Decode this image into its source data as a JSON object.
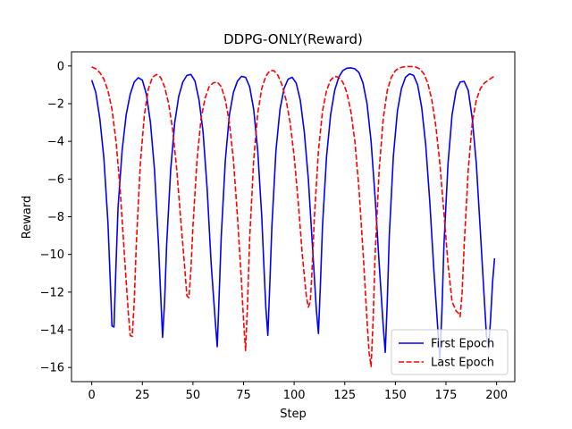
{
  "chart_data": {
    "type": "line",
    "title": "DDPG-ONLY(Reward)",
    "xlabel": "Step",
    "ylabel": "Reward",
    "xlim": [
      -10,
      209
    ],
    "ylim": [
      -16.75,
      0.75
    ],
    "xticks": [
      0,
      25,
      50,
      75,
      100,
      125,
      150,
      175,
      200
    ],
    "yticks": [
      0,
      -2,
      -4,
      -6,
      -8,
      -10,
      -12,
      -14,
      -16
    ],
    "grid": false,
    "legend_position": "lower-right",
    "series": [
      {
        "name": "First Epoch",
        "color": "#0000ff",
        "style": "solid",
        "points": [
          [
            0,
            -0.75
          ],
          [
            2,
            -1.4
          ],
          [
            4,
            -2.8
          ],
          [
            6,
            -4.9
          ],
          [
            8,
            -8.3
          ],
          [
            9,
            -11.0
          ],
          [
            10,
            -13.8
          ],
          [
            11,
            -13.85
          ],
          [
            12,
            -10.5
          ],
          [
            13,
            -7.5
          ],
          [
            15,
            -4.5
          ],
          [
            17,
            -2.6
          ],
          [
            19,
            -1.5
          ],
          [
            21,
            -0.85
          ],
          [
            23,
            -0.62
          ],
          [
            25,
            -0.75
          ],
          [
            27,
            -1.5
          ],
          [
            29,
            -3.0
          ],
          [
            31,
            -5.5
          ],
          [
            33,
            -9.5
          ],
          [
            34,
            -12.0
          ],
          [
            35,
            -14.4
          ],
          [
            36,
            -12.5
          ],
          [
            37,
            -9.5
          ],
          [
            39,
            -5.5
          ],
          [
            41,
            -3.0
          ],
          [
            43,
            -1.6
          ],
          [
            45,
            -0.85
          ],
          [
            47,
            -0.5
          ],
          [
            49,
            -0.45
          ],
          [
            51,
            -0.8
          ],
          [
            53,
            -1.8
          ],
          [
            55,
            -3.5
          ],
          [
            57,
            -6.5
          ],
          [
            59,
            -10.5
          ],
          [
            61,
            -13.5
          ],
          [
            62,
            -14.9
          ],
          [
            63,
            -12.0
          ],
          [
            64,
            -9.0
          ],
          [
            66,
            -5.0
          ],
          [
            68,
            -2.6
          ],
          [
            70,
            -1.4
          ],
          [
            72,
            -0.8
          ],
          [
            74,
            -0.55
          ],
          [
            76,
            -0.6
          ],
          [
            78,
            -1.1
          ],
          [
            80,
            -2.3
          ],
          [
            82,
            -4.5
          ],
          [
            84,
            -8.0
          ],
          [
            85,
            -10.5
          ],
          [
            86,
            -12.8
          ],
          [
            87,
            -14.3
          ],
          [
            88,
            -11.5
          ],
          [
            89,
            -8.5
          ],
          [
            91,
            -4.5
          ],
          [
            93,
            -2.3
          ],
          [
            95,
            -1.2
          ],
          [
            97,
            -0.7
          ],
          [
            99,
            -0.6
          ],
          [
            101,
            -0.9
          ],
          [
            103,
            -1.8
          ],
          [
            105,
            -3.5
          ],
          [
            107,
            -6.0
          ],
          [
            109,
            -9.5
          ],
          [
            111,
            -13.0
          ],
          [
            112,
            -14.2
          ],
          [
            113,
            -11.5
          ],
          [
            114,
            -8.5
          ],
          [
            116,
            -4.8
          ],
          [
            118,
            -2.6
          ],
          [
            120,
            -1.3
          ],
          [
            122,
            -0.6
          ],
          [
            124,
            -0.25
          ],
          [
            126,
            -0.12
          ],
          [
            128,
            -0.1
          ],
          [
            130,
            -0.15
          ],
          [
            132,
            -0.35
          ],
          [
            134,
            -0.9
          ],
          [
            136,
            -2.0
          ],
          [
            138,
            -4.0
          ],
          [
            140,
            -7.0
          ],
          [
            142,
            -10.5
          ],
          [
            144,
            -13.8
          ],
          [
            145,
            -15.2
          ],
          [
            146,
            -12.5
          ],
          [
            147,
            -9.0
          ],
          [
            149,
            -4.8
          ],
          [
            151,
            -2.4
          ],
          [
            153,
            -1.2
          ],
          [
            155,
            -0.6
          ],
          [
            157,
            -0.42
          ],
          [
            159,
            -0.5
          ],
          [
            161,
            -1.0
          ],
          [
            163,
            -2.2
          ],
          [
            165,
            -4.2
          ],
          [
            167,
            -7.2
          ],
          [
            169,
            -10.8
          ],
          [
            171,
            -14.0
          ],
          [
            172,
            -15.5
          ],
          [
            173,
            -13.0
          ],
          [
            174,
            -9.5
          ],
          [
            176,
            -5.2
          ],
          [
            178,
            -2.6
          ],
          [
            180,
            -1.3
          ],
          [
            182,
            -0.85
          ],
          [
            184,
            -0.82
          ],
          [
            186,
            -1.3
          ],
          [
            188,
            -2.8
          ],
          [
            190,
            -5.2
          ],
          [
            192,
            -8.8
          ],
          [
            194,
            -12.5
          ],
          [
            195,
            -14.3
          ],
          [
            196,
            -15.0
          ],
          [
            197,
            -13.5
          ],
          [
            198,
            -11.5
          ],
          [
            199,
            -10.2
          ]
        ]
      },
      {
        "name": "Last Epoch",
        "color": "#ff0000",
        "style": "dashed",
        "points": [
          [
            0,
            -0.05
          ],
          [
            2,
            -0.15
          ],
          [
            4,
            -0.35
          ],
          [
            6,
            -0.7
          ],
          [
            8,
            -1.3
          ],
          [
            10,
            -2.3
          ],
          [
            12,
            -4.0
          ],
          [
            14,
            -6.5
          ],
          [
            16,
            -9.8
          ],
          [
            18,
            -13.0
          ],
          [
            19,
            -14.3
          ],
          [
            20,
            -14.35
          ],
          [
            21,
            -12.5
          ],
          [
            22,
            -9.5
          ],
          [
            24,
            -5.2
          ],
          [
            26,
            -2.6
          ],
          [
            28,
            -1.2
          ],
          [
            30,
            -0.6
          ],
          [
            32,
            -0.45
          ],
          [
            34,
            -0.6
          ],
          [
            36,
            -1.1
          ],
          [
            38,
            -2.0
          ],
          [
            40,
            -3.4
          ],
          [
            42,
            -5.5
          ],
          [
            44,
            -8.2
          ],
          [
            46,
            -10.8
          ],
          [
            47,
            -12.2
          ],
          [
            48,
            -12.3
          ],
          [
            49,
            -10.8
          ],
          [
            50,
            -8.5
          ],
          [
            52,
            -5.0
          ],
          [
            54,
            -2.8
          ],
          [
            56,
            -1.7
          ],
          [
            58,
            -1.1
          ],
          [
            60,
            -0.9
          ],
          [
            62,
            -0.85
          ],
          [
            64,
            -1.1
          ],
          [
            66,
            -1.8
          ],
          [
            68,
            -3.0
          ],
          [
            70,
            -5.0
          ],
          [
            72,
            -8.0
          ],
          [
            74,
            -11.5
          ],
          [
            75,
            -13.5
          ],
          [
            76,
            -15.1
          ],
          [
            77,
            -12.5
          ],
          [
            78,
            -9.2
          ],
          [
            80,
            -5.0
          ],
          [
            82,
            -2.5
          ],
          [
            84,
            -1.2
          ],
          [
            86,
            -0.55
          ],
          [
            88,
            -0.25
          ],
          [
            90,
            -0.25
          ],
          [
            92,
            -0.5
          ],
          [
            94,
            -1.0
          ],
          [
            96,
            -1.8
          ],
          [
            98,
            -3.0
          ],
          [
            100,
            -4.8
          ],
          [
            102,
            -7.2
          ],
          [
            104,
            -10.0
          ],
          [
            106,
            -12.2
          ],
          [
            107,
            -12.8
          ],
          [
            108,
            -12.5
          ],
          [
            109,
            -10.5
          ],
          [
            110,
            -8.0
          ],
          [
            112,
            -4.5
          ],
          [
            114,
            -2.4
          ],
          [
            116,
            -1.3
          ],
          [
            118,
            -0.75
          ],
          [
            120,
            -0.55
          ],
          [
            122,
            -0.6
          ],
          [
            124,
            -0.85
          ],
          [
            126,
            -1.4
          ],
          [
            128,
            -2.4
          ],
          [
            130,
            -4.0
          ],
          [
            132,
            -6.5
          ],
          [
            134,
            -9.8
          ],
          [
            136,
            -13.5
          ],
          [
            137,
            -15.2
          ],
          [
            138,
            -15.95
          ],
          [
            139,
            -13.5
          ],
          [
            140,
            -10.0
          ],
          [
            142,
            -5.5
          ],
          [
            144,
            -2.8
          ],
          [
            146,
            -1.3
          ],
          [
            148,
            -0.6
          ],
          [
            150,
            -0.25
          ],
          [
            152,
            -0.1
          ],
          [
            154,
            -0.05
          ],
          [
            156,
            -0.03
          ],
          [
            158,
            -0.03
          ],
          [
            160,
            -0.05
          ],
          [
            162,
            -0.15
          ],
          [
            164,
            -0.4
          ],
          [
            166,
            -0.9
          ],
          [
            168,
            -1.8
          ],
          [
            170,
            -3.2
          ],
          [
            172,
            -5.2
          ],
          [
            174,
            -7.8
          ],
          [
            176,
            -10.5
          ],
          [
            178,
            -12.5
          ],
          [
            180,
            -13.0
          ],
          [
            181,
            -13.1
          ],
          [
            182,
            -13.3
          ],
          [
            183,
            -12.0
          ],
          [
            184,
            -9.5
          ],
          [
            186,
            -5.5
          ],
          [
            188,
            -3.0
          ],
          [
            190,
            -1.8
          ],
          [
            192,
            -1.2
          ],
          [
            194,
            -0.9
          ],
          [
            196,
            -0.75
          ],
          [
            198,
            -0.6
          ],
          [
            199,
            -0.55
          ]
        ]
      }
    ]
  }
}
